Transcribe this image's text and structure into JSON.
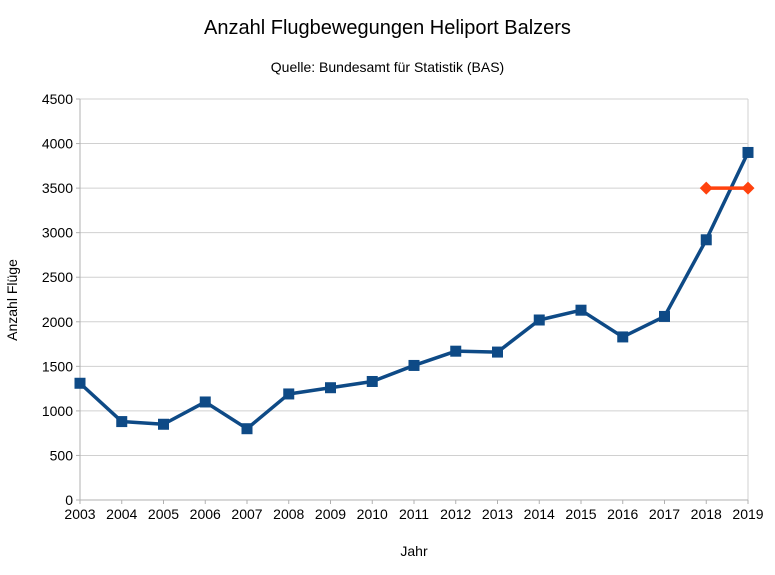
{
  "chart_data": {
    "type": "line",
    "title": "Anzahl Flugbewegungen Heliport Balzers",
    "subtitle": "Quelle: Bundesamt für Statistik (BAS)",
    "xlabel": "Jahr",
    "ylabel": "Anzahl Flüge",
    "categories": [
      "2003",
      "2004",
      "2005",
      "2006",
      "2007",
      "2008",
      "2009",
      "2010",
      "2011",
      "2012",
      "2013",
      "2014",
      "2015",
      "2016",
      "2017",
      "2018",
      "2019"
    ],
    "series": [
      {
        "id": "series-1",
        "color": "#0e4a86",
        "marker": "square",
        "line_width": 3.5,
        "values": [
          1310,
          880,
          850,
          1100,
          800,
          1190,
          1260,
          1330,
          1510,
          1670,
          1660,
          2020,
          2130,
          1830,
          2060,
          2920,
          3900
        ]
      },
      {
        "id": "series-2",
        "color": "#ff420e",
        "marker": "diamond",
        "line_width": 3.5,
        "values": [
          null,
          null,
          null,
          null,
          null,
          null,
          null,
          null,
          null,
          null,
          null,
          null,
          null,
          null,
          null,
          3500,
          3500
        ]
      }
    ],
    "ylim": [
      0,
      4500
    ],
    "ytick_step": 500,
    "grid": true,
    "legend": "none",
    "colors": {
      "grid": "#d0d0d0",
      "axis": "#b0b0b0",
      "text": "#000000",
      "background": "#ffffff"
    }
  }
}
